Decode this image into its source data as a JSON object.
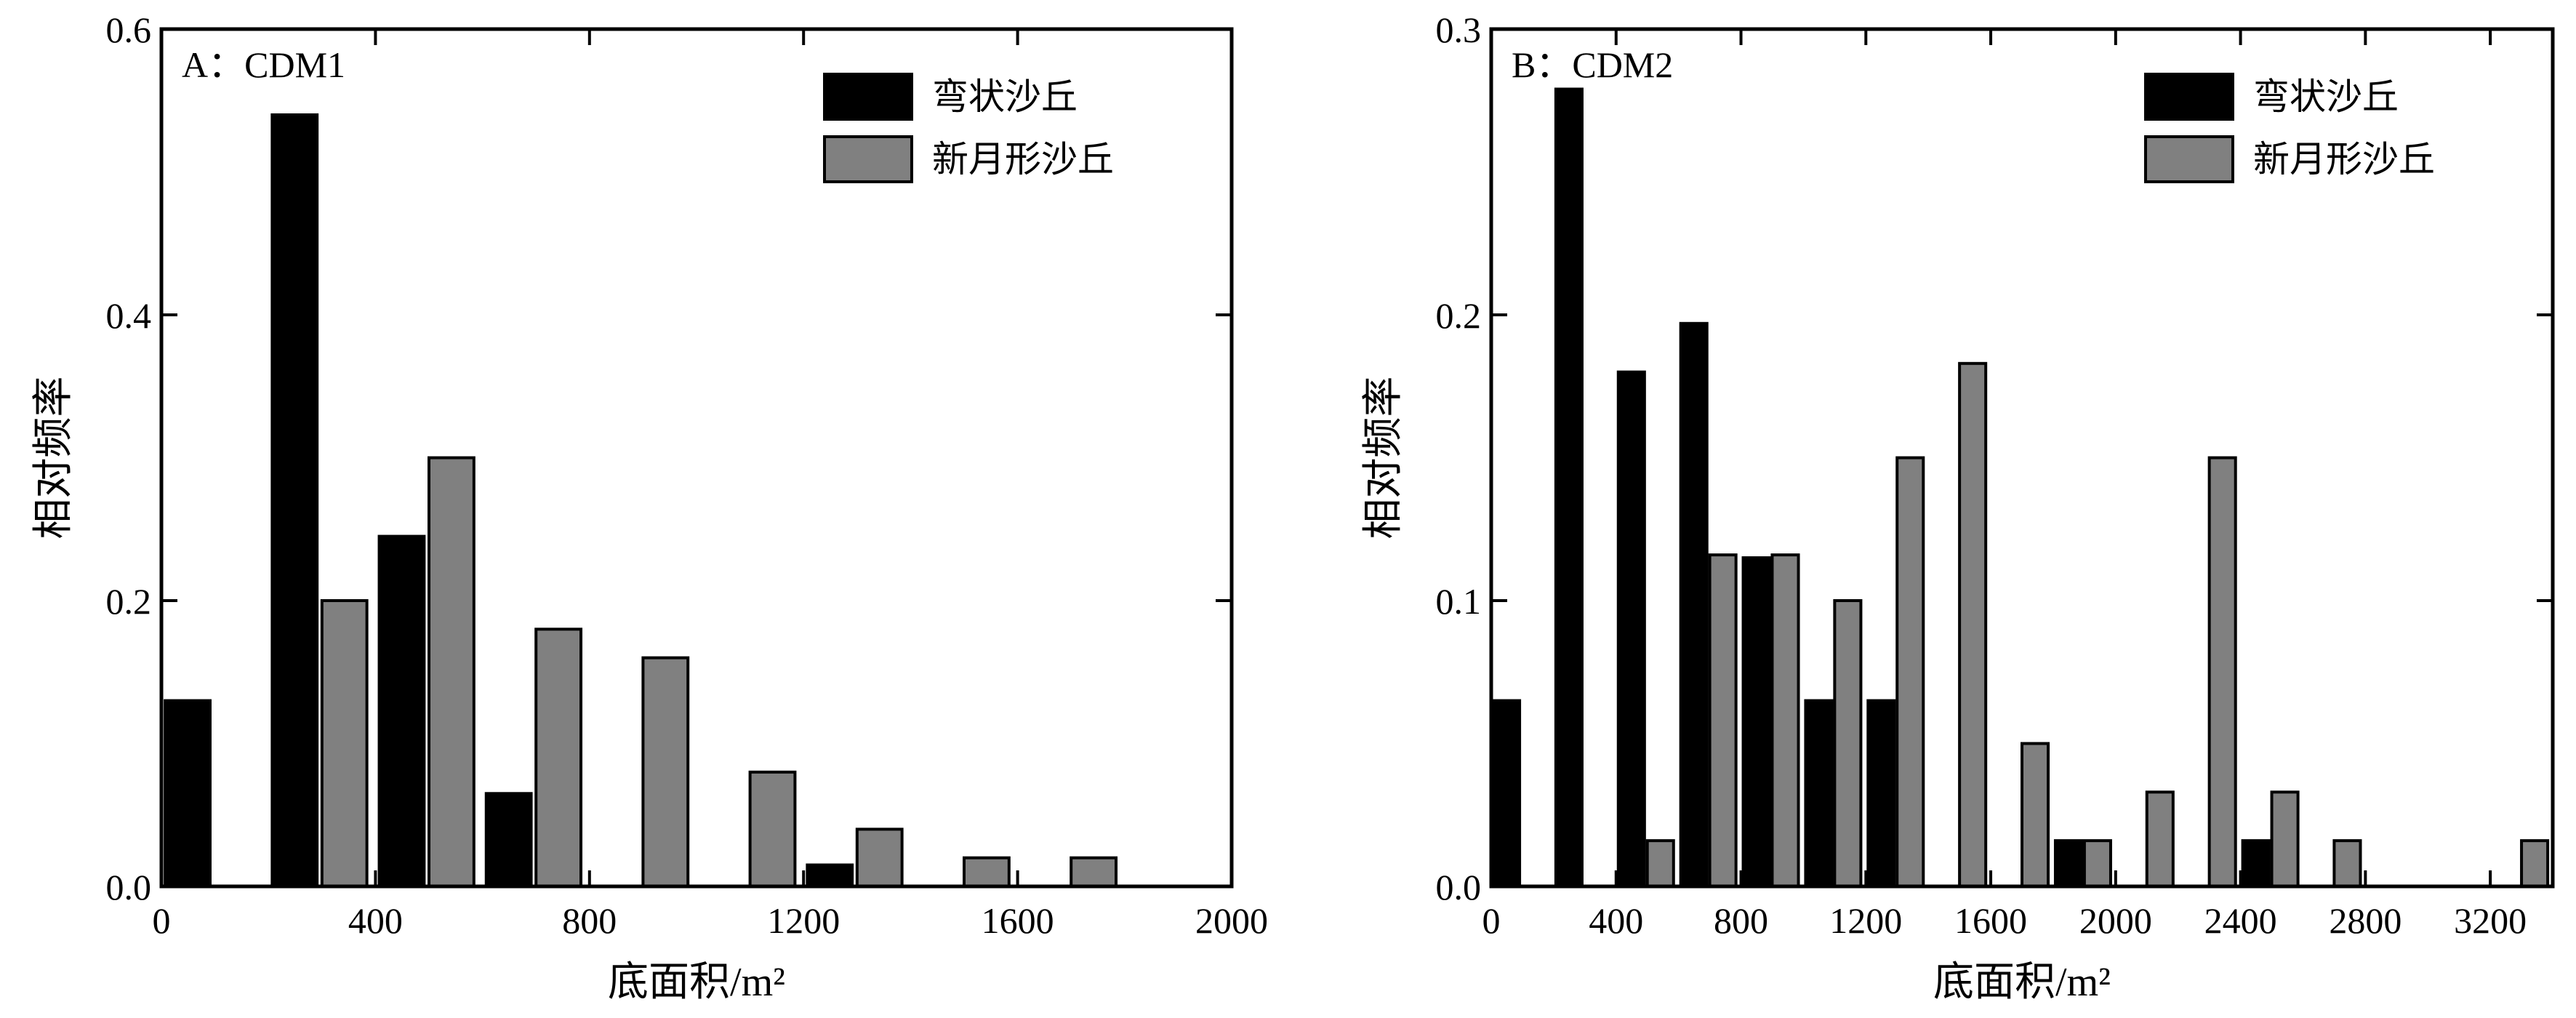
{
  "colors": {
    "series_1": "#000000",
    "series_2": "#808080",
    "frame": "#000000"
  },
  "chart_data": [
    {
      "type": "bar",
      "panel_label": "A：CDM1",
      "xlabel": "底面积/m²",
      "ylabel": "相对频率",
      "xlim": [
        0,
        2000
      ],
      "ylim": [
        0,
        0.6
      ],
      "xticks": [
        0,
        400,
        800,
        1200,
        1600,
        2000
      ],
      "xtick_labels": [
        "0",
        "400",
        "800",
        "1200",
        "1600",
        "2000"
      ],
      "yticks": [
        0,
        0.2,
        0.4,
        0.6
      ],
      "ytick_labels": [
        "0.0",
        "0.2",
        "0.4",
        "0.6"
      ],
      "bin_width": 200,
      "legend_position": "top-right",
      "grid": false,
      "series": [
        {
          "name": "弯状沙丘",
          "color": "#000000",
          "x": [
            0,
            200,
            400,
            600,
            1200
          ],
          "values": [
            0.13,
            0.54,
            0.245,
            0.065,
            0.015
          ]
        },
        {
          "name": "新月形沙丘",
          "color": "#808080",
          "x": [
            200,
            400,
            600,
            800,
            1000,
            1200,
            1400,
            1600
          ],
          "values": [
            0.2,
            0.3,
            0.18,
            0.16,
            0.08,
            0.04,
            0.02,
            0.02
          ]
        }
      ]
    },
    {
      "type": "bar",
      "panel_label": "B：CDM2",
      "xlabel": "底面积/m²",
      "ylabel": "相对频率",
      "xlim": [
        0,
        3400
      ],
      "ylim": [
        0,
        0.3
      ],
      "xticks": [
        0,
        400,
        800,
        1200,
        1600,
        2000,
        2400,
        2800,
        3200
      ],
      "xtick_labels": [
        "0",
        "400",
        "800",
        "1200",
        "1600",
        "2000",
        "2400",
        "2800",
        "3200"
      ],
      "yticks": [
        0,
        0.1,
        0.2,
        0.3
      ],
      "ytick_labels": [
        "0.0",
        "0.1",
        "0.2",
        "0.3"
      ],
      "bin_width": 200,
      "legend_position": "top-right",
      "grid": false,
      "series": [
        {
          "name": "弯状沙丘",
          "color": "#000000",
          "x": [
            0,
            200,
            400,
            600,
            800,
            1000,
            1200,
            1800,
            2400
          ],
          "values": [
            0.065,
            0.279,
            0.18,
            0.197,
            0.115,
            0.065,
            0.065,
            0.016,
            0.016
          ]
        },
        {
          "name": "新月形沙丘",
          "color": "#808080",
          "x": [
            400,
            600,
            800,
            1000,
            1200,
            1400,
            1600,
            1800,
            2000,
            2200,
            2400,
            2600,
            3200
          ],
          "values": [
            0.016,
            0.116,
            0.116,
            0.1,
            0.15,
            0.183,
            0.05,
            0.016,
            0.033,
            0.15,
            0.033,
            0.016,
            0.016
          ]
        }
      ]
    }
  ]
}
